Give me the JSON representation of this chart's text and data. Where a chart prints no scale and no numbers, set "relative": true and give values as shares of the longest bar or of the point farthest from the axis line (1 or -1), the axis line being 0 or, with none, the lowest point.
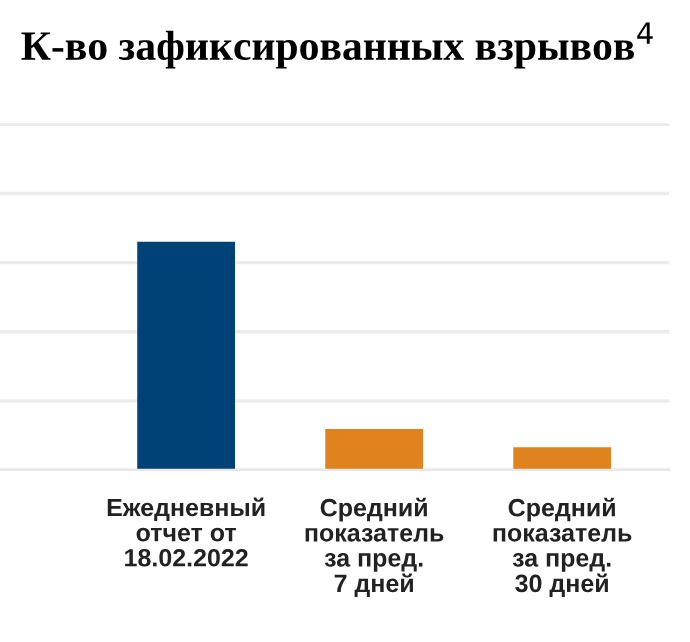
{
  "chart_data": {
    "type": "bar",
    "title": "К-во зафиксированных взрывов$^{4}$",
    "categories": [
      "Ежедневный\nотчет от\n18.02.2022",
      "Средний\nпоказатель\nза пред.\n7 дней",
      "Средний\nпоказатель\nза пред.\n30 дней"
    ],
    "values": [
      1,
      0.18,
      0.1
    ],
    "colors": [
      "#004276",
      "#e0821e",
      "#e0821e"
    ],
    "relative": true,
    "grid": "y",
    "legend": false
  }
}
